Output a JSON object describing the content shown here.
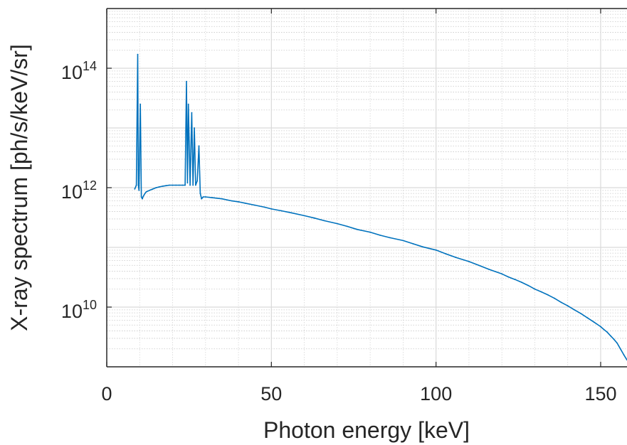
{
  "chart_data": {
    "type": "line",
    "xlabel": "Photon energy [keV]",
    "ylabel": "X-ray spectrum [ph/s/keV/sr]",
    "xlim": [
      0,
      158
    ],
    "ylim": [
      1000000000.0,
      1000000000000000.0
    ],
    "yscale": "log",
    "grid": true,
    "minor_grid": true,
    "x_ticks": [
      {
        "value": 0,
        "label": "0"
      },
      {
        "value": 50,
        "label": "50"
      },
      {
        "value": 100,
        "label": "100"
      },
      {
        "value": 150,
        "label": "150"
      }
    ],
    "y_ticks": [
      {
        "value": 10000000000.0,
        "base": "10",
        "exponent": "10"
      },
      {
        "value": 1000000000000.0,
        "base": "10",
        "exponent": "12"
      },
      {
        "value": 100000000000000.0,
        "base": "10",
        "exponent": "14"
      }
    ],
    "series": [
      {
        "color": "#0072BD",
        "x": [
          8.5,
          9.0,
          9.4,
          9.6,
          9.8,
          10.2,
          10.5,
          10.8,
          11.0,
          11.3,
          11.6,
          12,
          13,
          14,
          15,
          16,
          17,
          18,
          19,
          20,
          21,
          22,
          23,
          23.8,
          24.2,
          24.5,
          24.8,
          25.3,
          25.8,
          26.2,
          26.6,
          27.0,
          27.5,
          28.0,
          28.4,
          28.8,
          29.3,
          30,
          32,
          35,
          38,
          40,
          42,
          45,
          48,
          50,
          53,
          56,
          60,
          63,
          66,
          70,
          73,
          76,
          80,
          83,
          86,
          90,
          93,
          96,
          100,
          103,
          106,
          110,
          113,
          116,
          120,
          122,
          124,
          126,
          128,
          130,
          132,
          134,
          136,
          138,
          140,
          142,
          144,
          146,
          148,
          150,
          151,
          152,
          153,
          154,
          155,
          156,
          157,
          158
        ],
        "y": [
          950000000000.0,
          1100000000000.0,
          170000000000000.0,
          1100000000000.0,
          900000000000.0,
          25000000000000.0,
          700000000000.0,
          650000000000.0,
          700000000000.0,
          750000000000.0,
          800000000000.0,
          850000000000.0,
          900000000000.0,
          950000000000.0,
          1000000000000.0,
          1030000000000.0,
          1060000000000.0,
          1080000000000.0,
          1100000000000.0,
          1100000000000.0,
          1100000000000.0,
          1100000000000.0,
          1100000000000.0,
          1100000000000.0,
          60000000000000.0,
          1200000000000.0,
          25000000000000.0,
          1100000000000.0,
          18000000000000.0,
          1100000000000.0,
          10000000000000.0,
          1100000000000.0,
          1300000000000.0,
          5000000000000.0,
          800000000000.0,
          650000000000.0,
          700000000000.0,
          700000000000.0,
          680000000000.0,
          650000000000.0,
          600000000000.0,
          580000000000.0,
          550000000000.0,
          510000000000.0,
          470000000000.0,
          440000000000.0,
          410000000000.0,
          380000000000.0,
          340000000000.0,
          310000000000.0,
          280000000000.0,
          250000000000.0,
          225000000000.0,
          200000000000.0,
          180000000000.0,
          160000000000.0,
          145000000000.0,
          130000000000.0,
          115000000000.0,
          102000000000.0,
          90000000000.0,
          78000000000.0,
          68000000000.0,
          58000000000.0,
          50000000000.0,
          43000000000.0,
          36000000000.0,
          32000000000.0,
          29000000000.0,
          26000000000.0,
          23000000000.0,
          20000000000.0,
          18000000000.0,
          16000000000.0,
          14000000000.0,
          12000000000.0,
          10500000000.0,
          9000000000.0,
          7800000000.0,
          6600000000.0,
          5600000000.0,
          4700000000.0,
          4200000000.0,
          3800000000.0,
          3300000000.0,
          2900000000.0,
          2500000000.0,
          2000000000.0,
          1600000000.0,
          1300000000.0
        ]
      }
    ]
  }
}
